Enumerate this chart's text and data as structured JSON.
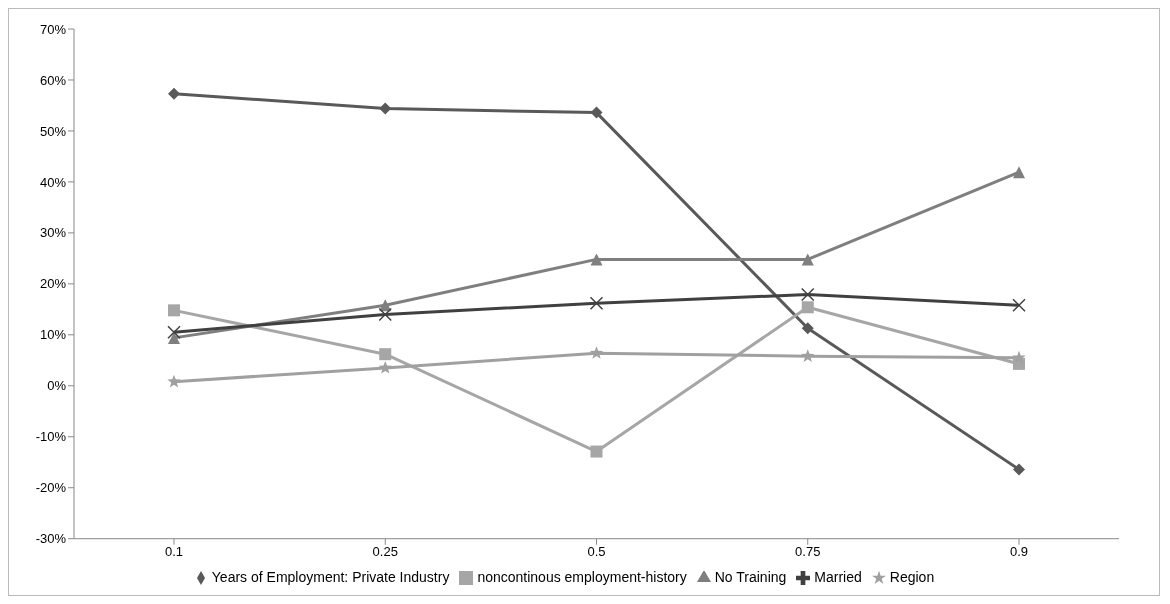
{
  "chart_data": {
    "type": "line",
    "categories": [
      "0.1",
      "0.25",
      "0.5",
      "0.75",
      "0.9"
    ],
    "series": [
      {
        "name": "Years of Employment: Private Industry",
        "color": "#595959",
        "marker": "diamond",
        "values": [
          57.3,
          54.4,
          53.6,
          11.3,
          -16.4
        ]
      },
      {
        "name": "noncontinous employment-history",
        "color": "#a6a6a6",
        "marker": "square",
        "values": [
          14.8,
          6.2,
          -12.9,
          15.4,
          4.3
        ]
      },
      {
        "name": "No Training",
        "color": "#7f7f7f",
        "marker": "triangle",
        "values": [
          9.4,
          15.8,
          24.8,
          24.8,
          41.9
        ]
      },
      {
        "name": "Married",
        "color": "#404040",
        "marker": "cross",
        "values": [
          10.5,
          14.0,
          16.2,
          17.9,
          15.8
        ]
      },
      {
        "name": "Region",
        "color": "#a0a0a0",
        "marker": "star",
        "values": [
          0.8,
          3.5,
          6.4,
          5.8,
          5.5
        ]
      }
    ],
    "ylim": [
      -30,
      70
    ],
    "yticks": [
      {
        "value": -30,
        "label": "-30%"
      },
      {
        "value": -20,
        "label": "-20%"
      },
      {
        "value": -10,
        "label": "-10%"
      },
      {
        "value": 0,
        "label": "0%"
      },
      {
        "value": 10,
        "label": "10%"
      },
      {
        "value": 20,
        "label": "20%"
      },
      {
        "value": 30,
        "label": "30%"
      },
      {
        "value": 40,
        "label": "40%"
      },
      {
        "value": 50,
        "label": "50%"
      },
      {
        "value": 60,
        "label": "60%"
      },
      {
        "value": 70,
        "label": "70%"
      }
    ],
    "grid": false,
    "legend": "bottom"
  }
}
